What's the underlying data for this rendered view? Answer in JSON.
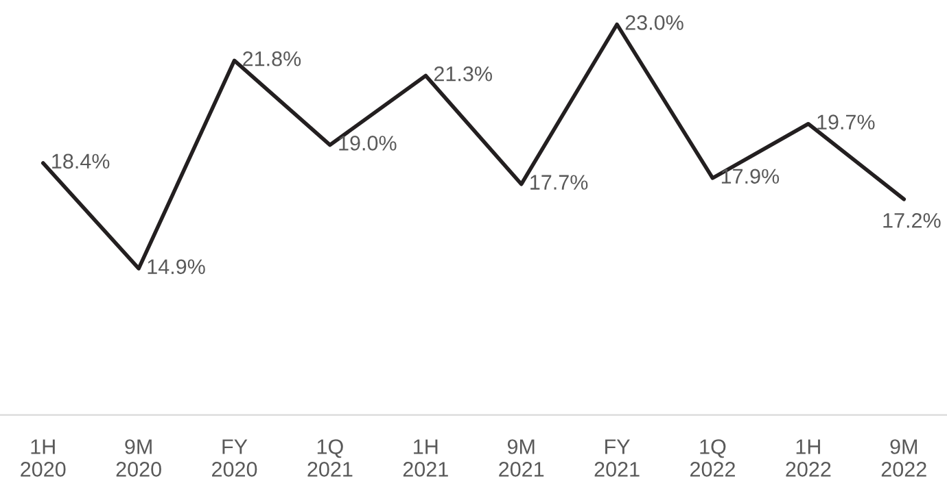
{
  "chart_data": {
    "type": "line",
    "categories": [
      "1H\n2020",
      "9M\n2020",
      "FY\n2020",
      "1Q\n2021",
      "1H\n2021",
      "9M\n2021",
      "FY\n2021",
      "1Q\n2022",
      "1H\n2022",
      "9M\n2022"
    ],
    "series": [
      {
        "color": "#231f20",
        "values": [
          18.4,
          14.9,
          21.8,
          19.0,
          21.3,
          17.7,
          23.0,
          17.9,
          19.7,
          17.2
        ],
        "value_labels": [
          "18.4%",
          "14.9%",
          "21.8%",
          "19.0%",
          "21.3%",
          "17.7%",
          "23.0%",
          "17.9%",
          "19.7%",
          "17.2%"
        ]
      }
    ],
    "tick_labels": "x",
    "grid": false,
    "legend": false,
    "marker": "none",
    "line_style": "solid"
  }
}
